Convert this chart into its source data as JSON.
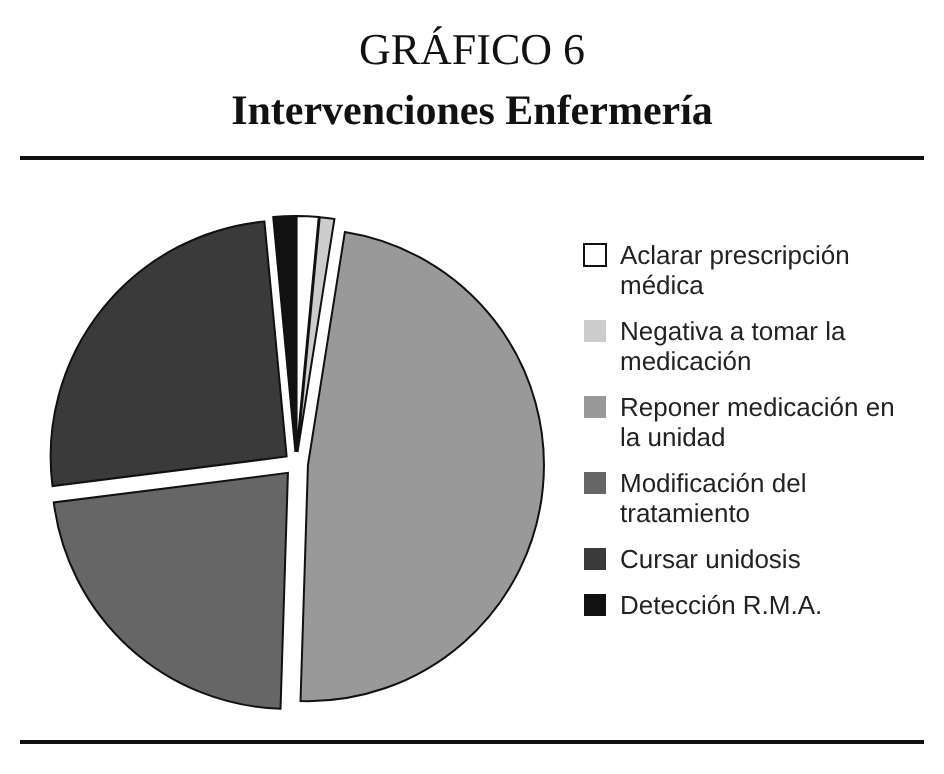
{
  "chart_data": {
    "type": "pie",
    "title": "GRÁFICO 6",
    "subtitle": "Intervenciones Enfermería",
    "categories": [
      "Aclarar prescripción médica",
      "Negativa a tomar la medicación",
      "Reponer medicación en la unidad",
      "Modificación del tratamiento",
      "Cursar unidosis",
      "Detección R.M.A."
    ],
    "values": [
      1.5,
      1,
      48,
      22.5,
      25.5,
      1.5
    ],
    "colors": [
      "#ffffff",
      "#cccccc",
      "#999999",
      "#666666",
      "#3a3a3a",
      "#111111"
    ],
    "legend": "right"
  }
}
